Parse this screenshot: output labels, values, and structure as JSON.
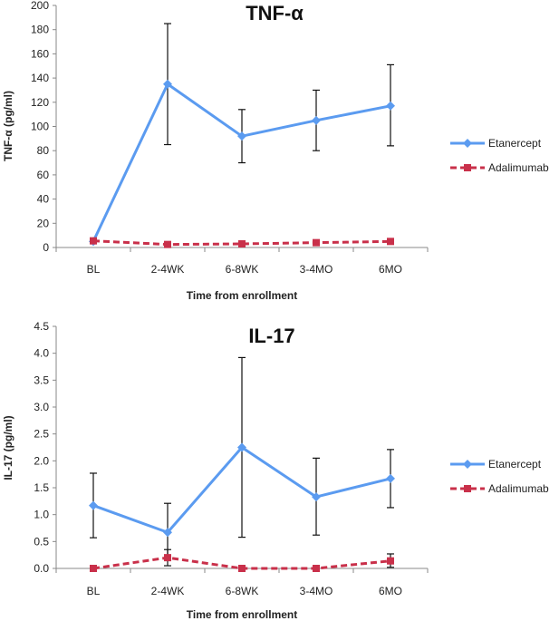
{
  "chart_data": [
    {
      "type": "line",
      "title": "TNF-α",
      "xlabel": "Time from enrollment",
      "ylabel": "TNF-α (pg/ml)",
      "ylim": [
        0,
        200
      ],
      "yticks": [
        "0",
        "20",
        "40",
        "60",
        "80",
        "100",
        "120",
        "140",
        "160",
        "180",
        "200"
      ],
      "categories": [
        "BL",
        "2-4WK",
        "6-8WK",
        "3-4MO",
        "6MO"
      ],
      "grid": false,
      "legend_position": "right",
      "series": [
        {
          "name": "Etanercept",
          "color": "#5b9bf0",
          "style": "solid",
          "marker": "diamond",
          "values": [
            5,
            135,
            92,
            105,
            117
          ],
          "error": [
            [
              null,
              null
            ],
            [
              85,
              185
            ],
            [
              70,
              114
            ],
            [
              80,
              130
            ],
            [
              84,
              151
            ]
          ]
        },
        {
          "name": "Adalimumab",
          "color": "#c9304a",
          "style": "dashed",
          "marker": "square",
          "values": [
            5.5,
            2.5,
            3,
            4,
            5
          ],
          "error": [
            [
              null,
              null
            ],
            [
              null,
              null
            ],
            [
              null,
              null
            ],
            [
              null,
              null
            ],
            [
              null,
              null
            ]
          ]
        }
      ]
    },
    {
      "type": "line",
      "title": "IL-17",
      "xlabel": "Time from enrollment",
      "ylabel": "IL-17 (pg/ml)",
      "ylim": [
        0,
        4.5
      ],
      "yticks": [
        "0.0",
        "0.5",
        "1.0",
        "1.5",
        "2.0",
        "2.5",
        "3.0",
        "3.5",
        "4.0",
        "4.5"
      ],
      "categories": [
        "BL",
        "2-4WK",
        "6-8WK",
        "3-4MO",
        "6MO"
      ],
      "grid": false,
      "legend_position": "right",
      "series": [
        {
          "name": "Etanercept",
          "color": "#5b9bf0",
          "style": "solid",
          "marker": "diamond",
          "values": [
            1.17,
            0.67,
            2.25,
            1.33,
            1.67
          ],
          "error": [
            [
              0.57,
              1.77
            ],
            [
              0.15,
              1.21
            ],
            [
              0.58,
              3.92
            ],
            [
              0.62,
              2.05
            ],
            [
              1.13,
              2.21
            ]
          ]
        },
        {
          "name": "Adalimumab",
          "color": "#c9304a",
          "style": "dashed",
          "marker": "square",
          "values": [
            0.0,
            0.2,
            0.0,
            0.0,
            0.14
          ],
          "error": [
            [
              null,
              null
            ],
            [
              0.05,
              0.35
            ],
            [
              null,
              null
            ],
            [
              null,
              null
            ],
            [
              0.02,
              0.27
            ]
          ]
        }
      ]
    }
  ]
}
